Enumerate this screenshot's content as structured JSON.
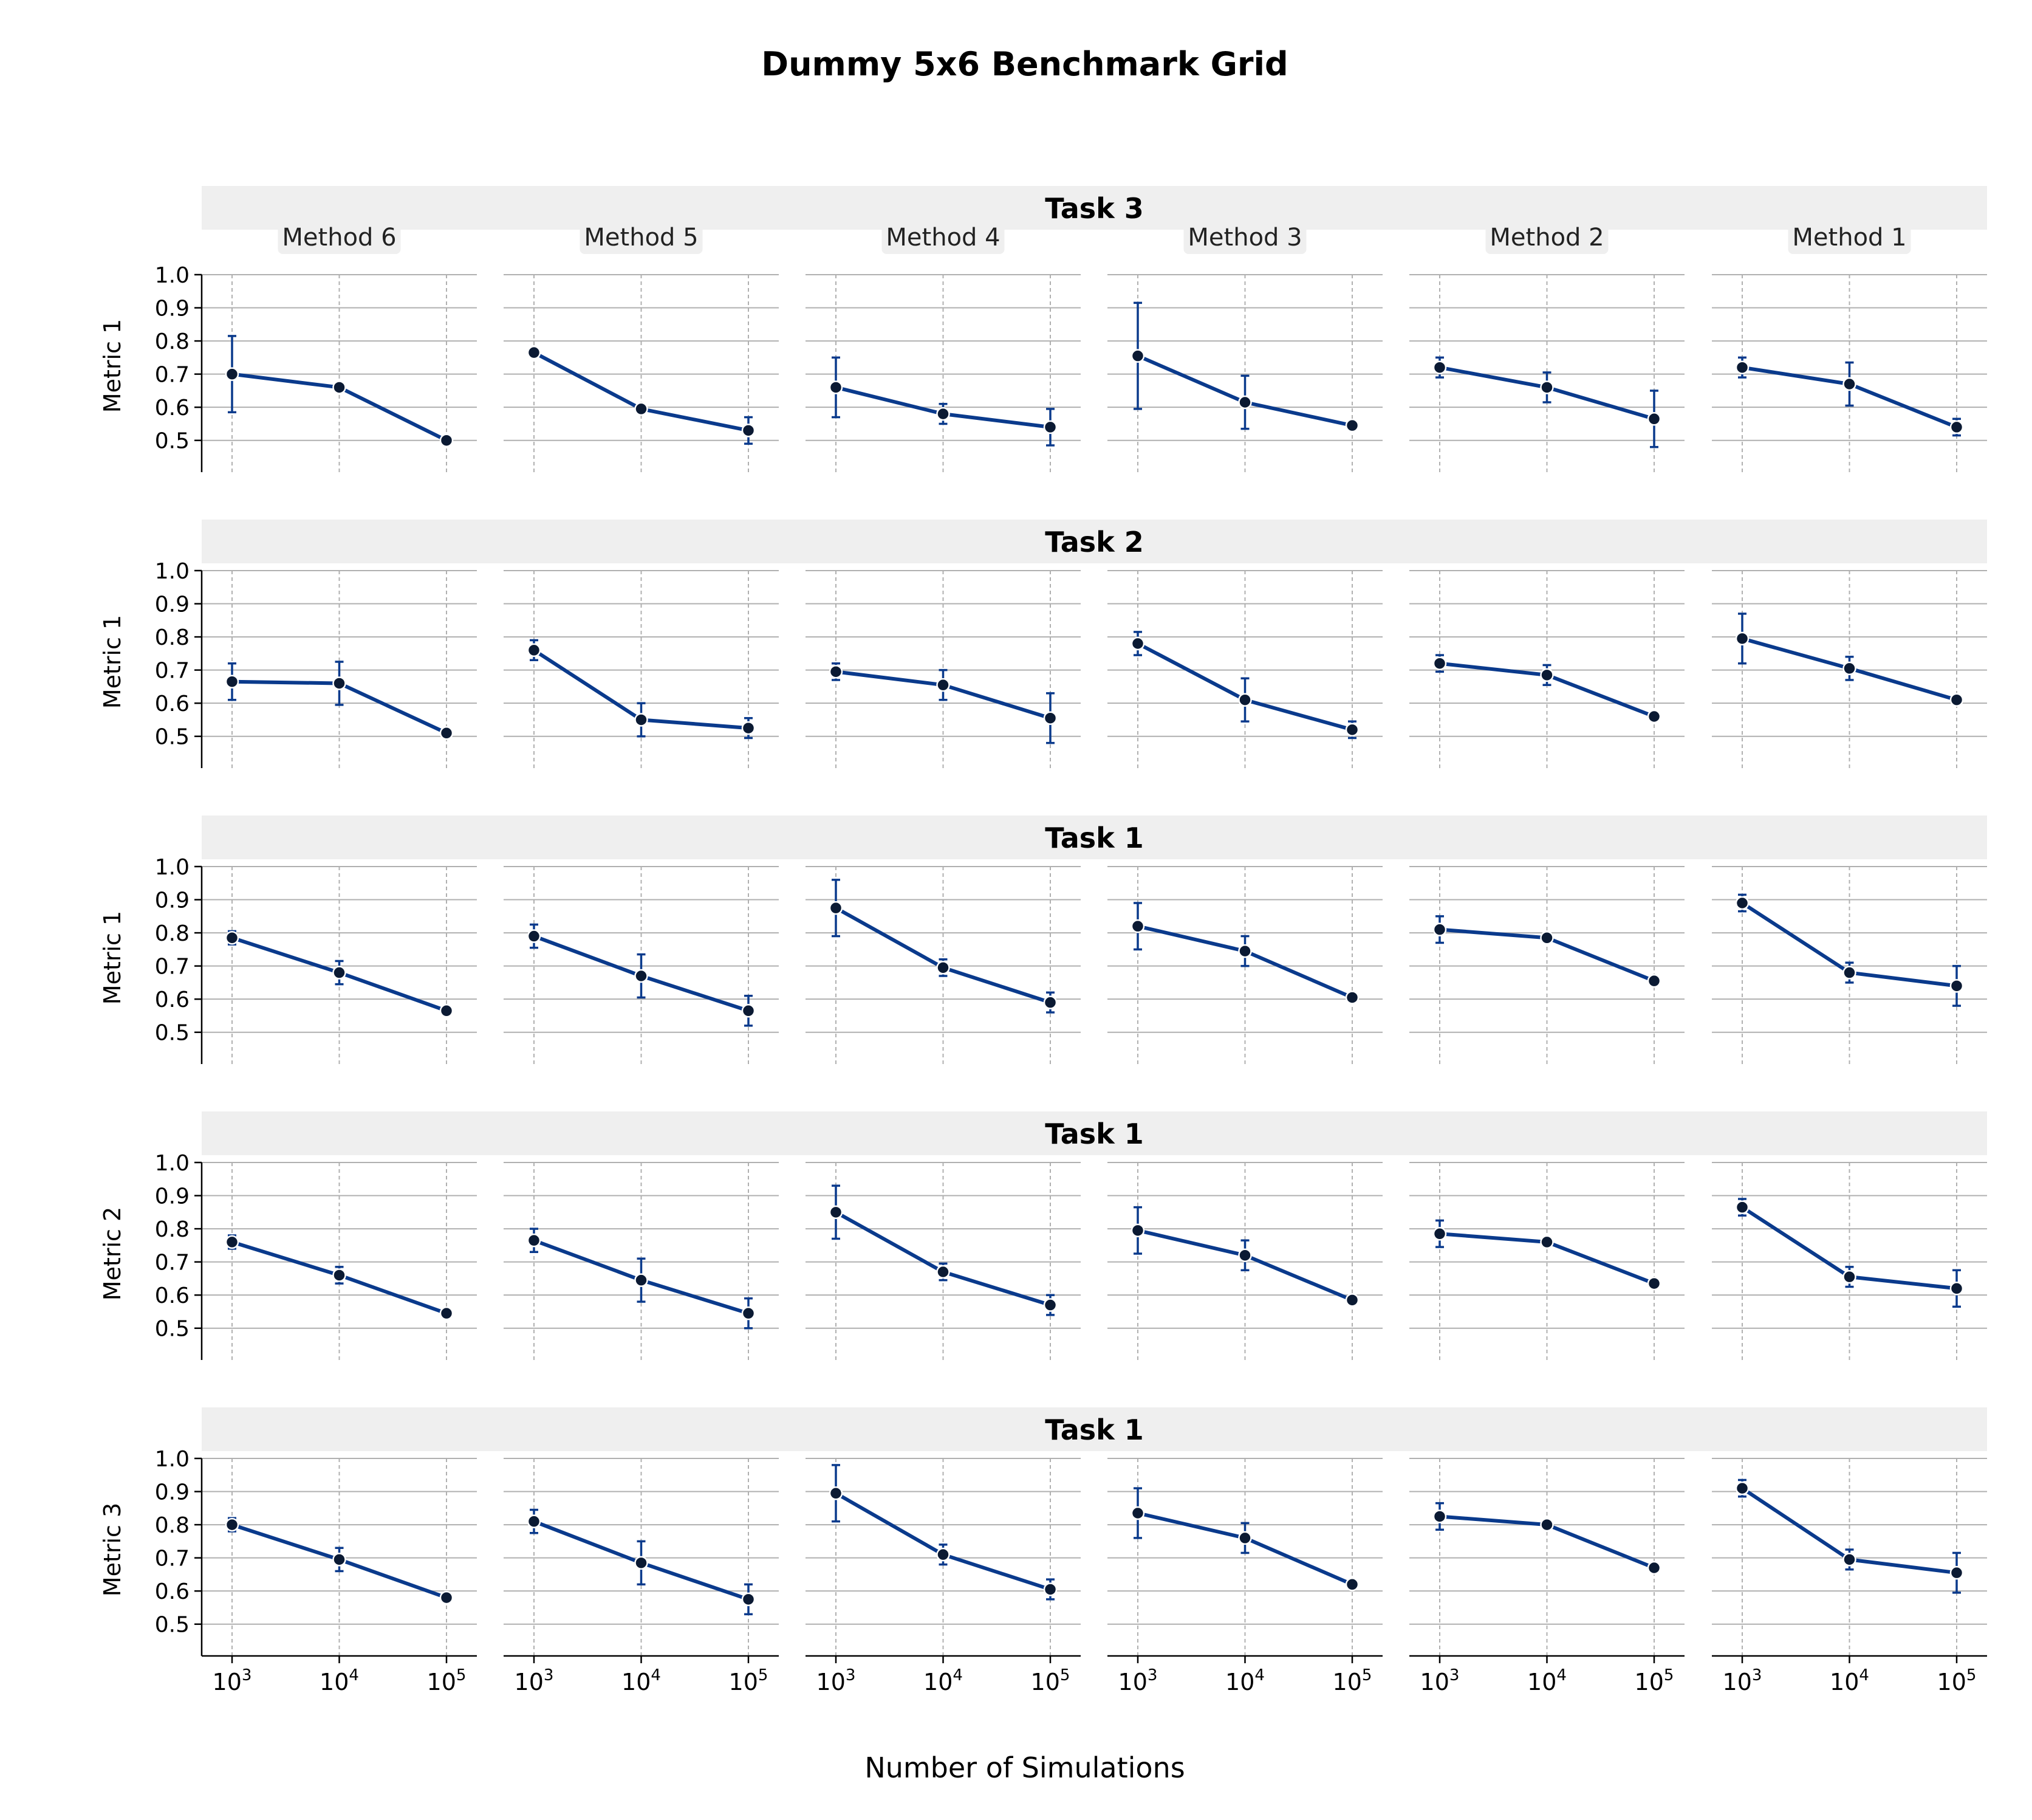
{
  "chart_data": {
    "type": "line",
    "title": "Dummy 5x6 Benchmark Grid",
    "xlabel": "Number of Simulations",
    "x": [
      1000,
      10000,
      100000
    ],
    "x_scale": "log",
    "x_tick_labels": [
      {
        "base": "10",
        "exp": "3"
      },
      {
        "base": "10",
        "exp": "4"
      },
      {
        "base": "10",
        "exp": "5"
      }
    ],
    "ylim": [
      0.45,
      1.0
    ],
    "y_ticks": [
      "0.5",
      "0.6",
      "0.7",
      "0.8",
      "0.9",
      "1.0"
    ],
    "grid": true,
    "line_color": "#0a3a8c",
    "marker_color": "#0b1a33",
    "strip_color": "#efefef",
    "columns": [
      "Method 6",
      "Method 5",
      "Method 4",
      "Method 3",
      "Method 2",
      "Method 1"
    ],
    "rows": [
      {
        "task": "Task 3",
        "ylabel": "Metric 1",
        "panels": [
          {
            "y": [
              0.7,
              0.66,
              0.5
            ],
            "err": [
              0.115,
              0.0,
              0.0
            ]
          },
          {
            "y": [
              0.765,
              0.595,
              0.53
            ],
            "err": [
              0.0,
              0.0,
              0.04
            ]
          },
          {
            "y": [
              0.66,
              0.58,
              0.54
            ],
            "err": [
              0.09,
              0.03,
              0.055
            ]
          },
          {
            "y": [
              0.755,
              0.615,
              0.545
            ],
            "err": [
              0.16,
              0.08,
              0.0
            ]
          },
          {
            "y": [
              0.72,
              0.66,
              0.565
            ],
            "err": [
              0.03,
              0.045,
              0.085
            ]
          },
          {
            "y": [
              0.72,
              0.67,
              0.54
            ],
            "err": [
              0.03,
              0.065,
              0.025
            ]
          }
        ]
      },
      {
        "task": "Task 2",
        "ylabel": "Metric 1",
        "panels": [
          {
            "y": [
              0.665,
              0.66,
              0.51
            ],
            "err": [
              0.055,
              0.065,
              0.0
            ]
          },
          {
            "y": [
              0.76,
              0.55,
              0.525
            ],
            "err": [
              0.03,
              0.05,
              0.03
            ]
          },
          {
            "y": [
              0.695,
              0.655,
              0.555
            ],
            "err": [
              0.025,
              0.045,
              0.075
            ]
          },
          {
            "y": [
              0.78,
              0.61,
              0.52
            ],
            "err": [
              0.035,
              0.065,
              0.025
            ]
          },
          {
            "y": [
              0.72,
              0.685,
              0.56
            ],
            "err": [
              0.025,
              0.03,
              0.0
            ]
          },
          {
            "y": [
              0.795,
              0.705,
              0.61
            ],
            "err": [
              0.075,
              0.035,
              0.0
            ]
          }
        ]
      },
      {
        "task": "Task 1",
        "ylabel": "Metric 1",
        "panels": [
          {
            "y": [
              0.785,
              0.68,
              0.565
            ],
            "err": [
              0.02,
              0.035,
              0.0
            ]
          },
          {
            "y": [
              0.79,
              0.67,
              0.565
            ],
            "err": [
              0.035,
              0.065,
              0.045
            ]
          },
          {
            "y": [
              0.875,
              0.695,
              0.59
            ],
            "err": [
              0.085,
              0.025,
              0.03
            ]
          },
          {
            "y": [
              0.82,
              0.745,
              0.605
            ],
            "err": [
              0.07,
              0.045,
              0.0
            ]
          },
          {
            "y": [
              0.81,
              0.785,
              0.655
            ],
            "err": [
              0.04,
              0.0,
              0.0
            ]
          },
          {
            "y": [
              0.89,
              0.68,
              0.64
            ],
            "err": [
              0.025,
              0.03,
              0.06
            ]
          }
        ]
      },
      {
        "task": "Task 1",
        "ylabel": "Metric 2",
        "panels": [
          {
            "y": [
              0.76,
              0.66,
              0.545
            ],
            "err": [
              0.02,
              0.025,
              0.0
            ]
          },
          {
            "y": [
              0.765,
              0.645,
              0.545
            ],
            "err": [
              0.035,
              0.065,
              0.045
            ]
          },
          {
            "y": [
              0.85,
              0.67,
              0.57
            ],
            "err": [
              0.08,
              0.025,
              0.03
            ]
          },
          {
            "y": [
              0.795,
              0.72,
              0.585
            ],
            "err": [
              0.07,
              0.045,
              0.0
            ]
          },
          {
            "y": [
              0.785,
              0.76,
              0.635
            ],
            "err": [
              0.04,
              0.0,
              0.0
            ]
          },
          {
            "y": [
              0.865,
              0.655,
              0.62
            ],
            "err": [
              0.025,
              0.03,
              0.055
            ]
          }
        ]
      },
      {
        "task": "Task 1",
        "ylabel": "Metric 3",
        "panels": [
          {
            "y": [
              0.8,
              0.695,
              0.58
            ],
            "err": [
              0.02,
              0.035,
              0.0
            ]
          },
          {
            "y": [
              0.81,
              0.685,
              0.575
            ],
            "err": [
              0.035,
              0.065,
              0.045
            ]
          },
          {
            "y": [
              0.895,
              0.71,
              0.605
            ],
            "err": [
              0.085,
              0.03,
              0.03
            ]
          },
          {
            "y": [
              0.835,
              0.76,
              0.62
            ],
            "err": [
              0.075,
              0.045,
              0.0
            ]
          },
          {
            "y": [
              0.825,
              0.8,
              0.67
            ],
            "err": [
              0.04,
              0.0,
              0.0
            ]
          },
          {
            "y": [
              0.91,
              0.695,
              0.655
            ],
            "err": [
              0.025,
              0.03,
              0.06
            ]
          }
        ]
      }
    ]
  }
}
